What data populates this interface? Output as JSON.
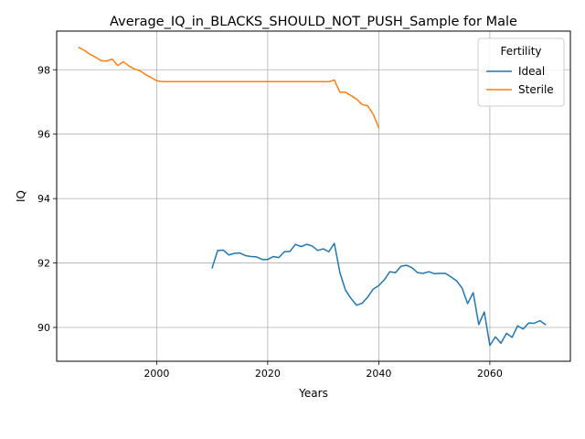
{
  "chart_data": {
    "type": "line",
    "title": "Average_IQ_in_BLACKS_SHOULD_NOT_PUSH_Sample for Male",
    "xlabel": "Years",
    "ylabel": "IQ",
    "xlim": [
      1982,
      2074.5
    ],
    "ylim": [
      88.95,
      99.2
    ],
    "xticks": [
      2000,
      2020,
      2040,
      2060
    ],
    "yticks": [
      90,
      92,
      94,
      96,
      98
    ],
    "xtick_labels": [
      "2000",
      "2020",
      "2040",
      "2060"
    ],
    "ytick_labels": [
      "90",
      "92",
      "94",
      "96",
      "98"
    ],
    "grid": true,
    "legend": {
      "title": "Fertility",
      "position": "top-right"
    },
    "series": [
      {
        "name": "Ideal",
        "color": "#1f77b4",
        "x": [
          2010,
          2011,
          2012,
          2013,
          2014,
          2015,
          2016,
          2017,
          2018,
          2019,
          2020,
          2021,
          2022,
          2023,
          2024,
          2025,
          2026,
          2027,
          2028,
          2029,
          2030,
          2031,
          2032,
          2033,
          2034,
          2035,
          2036,
          2037,
          2038,
          2039,
          2040,
          2041,
          2042,
          2043,
          2044,
          2045,
          2046,
          2047,
          2048,
          2049,
          2050,
          2051,
          2052,
          2053,
          2054,
          2055,
          2056,
          2057,
          2058,
          2059,
          2060,
          2061,
          2062,
          2063,
          2064,
          2065,
          2066,
          2067,
          2068,
          2069,
          2070
        ],
        "values": [
          91.85,
          92.39,
          92.4,
          92.25,
          92.3,
          92.31,
          92.23,
          92.2,
          92.19,
          92.11,
          92.11,
          92.2,
          92.17,
          92.35,
          92.36,
          92.58,
          92.51,
          92.58,
          92.53,
          92.39,
          92.44,
          92.35,
          92.61,
          91.7,
          91.16,
          90.9,
          90.69,
          90.75,
          90.94,
          91.19,
          91.3,
          91.48,
          91.73,
          91.7,
          91.9,
          91.93,
          91.85,
          91.7,
          91.68,
          91.73,
          91.67,
          91.68,
          91.68,
          91.57,
          91.45,
          91.22,
          90.74,
          91.08,
          90.09,
          90.48,
          89.44,
          89.71,
          89.51,
          89.82,
          89.69,
          90.05,
          89.95,
          90.14,
          90.13,
          90.21,
          90.09
        ]
      },
      {
        "name": "Sterile",
        "color": "#ff7f0e",
        "x": [
          1986,
          1987,
          1988,
          1989,
          1990,
          1991,
          1992,
          1993,
          1994,
          1995,
          1996,
          1997,
          1998,
          1999,
          2000,
          2001,
          2002,
          2003,
          2004,
          2005,
          2006,
          2007,
          2008,
          2009,
          2010,
          2011,
          2012,
          2013,
          2014,
          2015,
          2016,
          2017,
          2018,
          2019,
          2020,
          2021,
          2022,
          2023,
          2024,
          2025,
          2026,
          2027,
          2028,
          2029,
          2030,
          2031,
          2032,
          2033,
          2034,
          2035,
          2036,
          2037,
          2038,
          2039,
          2040
        ],
        "values": [
          98.69,
          98.6,
          98.48,
          98.39,
          98.28,
          98.27,
          98.33,
          98.13,
          98.25,
          98.12,
          98.02,
          97.97,
          97.85,
          97.76,
          97.66,
          97.63,
          97.63,
          97.63,
          97.63,
          97.63,
          97.63,
          97.63,
          97.63,
          97.63,
          97.63,
          97.63,
          97.63,
          97.63,
          97.63,
          97.63,
          97.63,
          97.63,
          97.63,
          97.63,
          97.63,
          97.63,
          97.63,
          97.63,
          97.63,
          97.63,
          97.63,
          97.63,
          97.63,
          97.63,
          97.63,
          97.63,
          97.68,
          97.3,
          97.3,
          97.2,
          97.09,
          96.92,
          96.88,
          96.62,
          96.2
        ]
      }
    ]
  }
}
